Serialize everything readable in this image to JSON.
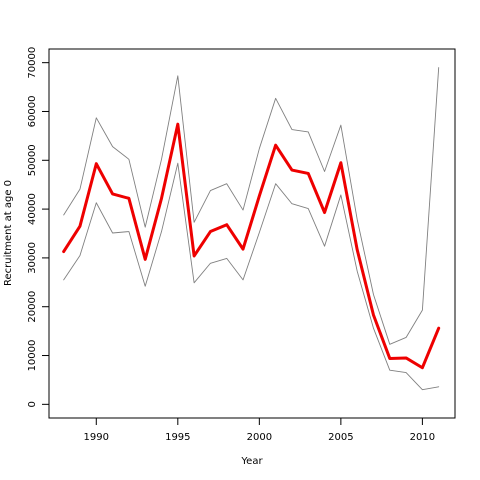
{
  "chart_data": {
    "type": "line",
    "title": "",
    "xlabel": "Year",
    "ylabel": "Recruitment at age 0",
    "xlim": [
      1987.1,
      2012.0
    ],
    "ylim": [
      -2800,
      72800
    ],
    "x_ticks": [
      1990,
      1995,
      2000,
      2005,
      2010
    ],
    "y_ticks": [
      0,
      10000,
      20000,
      30000,
      40000,
      50000,
      60000,
      70000
    ],
    "grid": false,
    "legend": "none",
    "x": [
      1988,
      1989,
      1990,
      1991,
      1992,
      1993,
      1994,
      1995,
      1996,
      1997,
      1998,
      1999,
      2000,
      2001,
      2002,
      2003,
      2004,
      2005,
      2006,
      2007,
      2008,
      2009,
      2010,
      2011
    ],
    "series": [
      {
        "role": "estimate",
        "color": "#ee0000",
        "values": [
          31300,
          36500,
          49300,
          43100,
          42200,
          29700,
          42200,
          57400,
          30400,
          35400,
          36800,
          31800,
          42700,
          53100,
          48000,
          47300,
          39300,
          49500,
          31700,
          18300,
          9400,
          9500,
          7500,
          15600
        ]
      },
      {
        "role": "upper",
        "color": "#808080",
        "values": [
          38800,
          44100,
          58700,
          52800,
          50200,
          36300,
          50200,
          67300,
          37300,
          43800,
          45200,
          39800,
          52400,
          62700,
          56300,
          55800,
          47700,
          57200,
          37900,
          22500,
          12300,
          13700,
          19300,
          69000
        ]
      },
      {
        "role": "lower",
        "color": "#808080",
        "values": [
          25500,
          30500,
          41300,
          35100,
          35400,
          24200,
          35400,
          49400,
          24900,
          28900,
          29900,
          25500,
          35200,
          45200,
          41100,
          40100,
          32400,
          42900,
          27300,
          15600,
          7000,
          6500,
          3000,
          3600
        ]
      }
    ]
  }
}
